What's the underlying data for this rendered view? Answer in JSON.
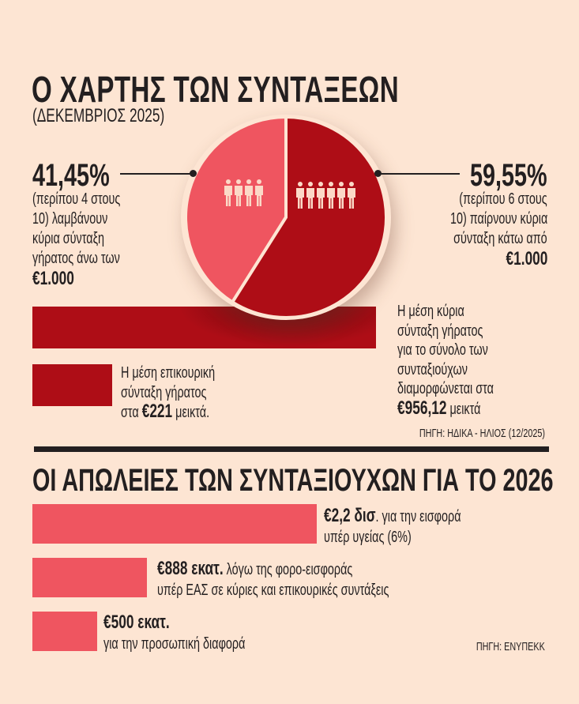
{
  "header": {
    "title": "Ο ΧΑΡΤΗΣ ΤΩΝ ΣΥΝΤΑΞΕΩΝ",
    "subtitle": "(ΔΕΚΕΜΒΡΙΟΣ 2025)"
  },
  "left_callout": {
    "percent": "41,45%",
    "lines": [
      "(περίπου 4 στους",
      "10) λαμβάνουν",
      "κύρια σύνταξη",
      "γήρατος άνω των"
    ],
    "amount": "€1.000"
  },
  "right_callout": {
    "percent": "59,55%",
    "lines": [
      "(περίπου 6 στους",
      "10) παίρνουν κύρια",
      "σύνταξη κάτω από"
    ],
    "amount": "€1.000"
  },
  "main_pension": {
    "lines": [
      "Η μέση κύρια",
      "σύνταξη γήρατος",
      "για το σύνολο των",
      "συνταξιούχων",
      "διαμορφώνεται στα"
    ],
    "amount": "€956,12",
    "suffix": " μεικτά"
  },
  "aux_pension": {
    "lines": [
      "Η μέση επικουρική",
      "σύνταξη γήρατος"
    ],
    "prefix": "στα ",
    "amount": "€221",
    "suffix": " μεικτά."
  },
  "source1": "ΠΗΓΗ: ΗΔΙΚΑ - ΗΛΙΟΣ (12/2025)",
  "section2": {
    "title": "ΟΙ ΑΠΩΛΕΙΕΣ ΤΩΝ ΣΥΝΤΑΞΙΟΥΧΩΝ ΓΙΑ ΤΟ 2026",
    "items": [
      {
        "amount": "€2,2 δισ",
        "line1": ". για την εισφορά",
        "line2": "υπέρ υγείας (6%)"
      },
      {
        "amount": "€888 εκατ.",
        "line1": " λόγω της φορο-εισφοράς",
        "line2": "υπέρ ΕΑΣ σε κύριες και επικουρικές συντάξεις"
      },
      {
        "amount": "€500 εκατ.",
        "line1": "",
        "line2": "για την προσωπική διαφορά"
      }
    ],
    "source": "ΠΗΓΗ: ΕΝΥΠΕΚΚ"
  },
  "chart_data": [
    {
      "type": "pie",
      "title": "Ο ΧΑΡΤΗΣ ΤΩΝ ΣΥΝΤΑΞΕΩΝ",
      "categories": [
        "Κύρια σύνταξη άνω των €1.000",
        "Κύρια σύνταξη κάτω από €1.000"
      ],
      "values": [
        41.45,
        59.55
      ],
      "colors": [
        "#ef5560",
        "#ae0d16"
      ],
      "icons_people": [
        4,
        6
      ]
    },
    {
      "type": "bar",
      "orientation": "horizontal",
      "categories": [
        "Μέση κύρια σύνταξη γήρατος",
        "Μέση επικουρική σύνταξη γήρατος"
      ],
      "values": [
        956.12,
        221
      ],
      "unit": "€",
      "color": "#ae0d16"
    },
    {
      "type": "bar",
      "orientation": "horizontal",
      "title": "ΟΙ ΑΠΩΛΕΙΕΣ ΤΩΝ ΣΥΝΤΑΞΙΟΥΧΩΝ ΓΙΑ ΤΟ 2026",
      "categories": [
        "Εισφορά υπέρ υγείας (6%)",
        "Φορο-εισφορά υπέρ ΕΑΣ",
        "Προσωπική διαφορά"
      ],
      "values": [
        2200,
        888,
        500
      ],
      "unit": "€ εκατ.",
      "color": "#ef5560"
    }
  ]
}
